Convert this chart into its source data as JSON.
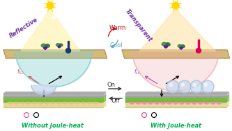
{
  "bg_color": "#ffffff",
  "top_left_label": "Reflective",
  "top_right_label": "Transparent",
  "bottom_left_label": "Without Joule-heat",
  "bottom_right_label": "With Joule-heat",
  "warm_label": "Warm",
  "cool_label": "Cool",
  "on_label": "On",
  "off_label": "Off",
  "reflective_color": "#7030a0",
  "transparent_color": "#7030a0",
  "joule_label_color": "#00b050",
  "warm_color": "#c00000",
  "cool_color": "#56a0c8",
  "ground_color": "#d4b97a",
  "tunnel_color_left": "#7ecfcf",
  "tunnel_color_right": "#f0a8a8",
  "layer_green": "#70c030",
  "layer_gray": "#b0b0b0",
  "layer_cream": "#e8d898",
  "sun_color": "#ffd700",
  "fsl_arrow_color": "#e05050",
  "fll_arrow_color": "#c050c0",
  "bump_cream": "#d8c878",
  "bump_pink": "#e890b0",
  "droplet_color": "#c8d8ee",
  "droplet_edge": "#9ab8d8",
  "electrode_pink": "#dd4488",
  "on_off_color": "#333333"
}
